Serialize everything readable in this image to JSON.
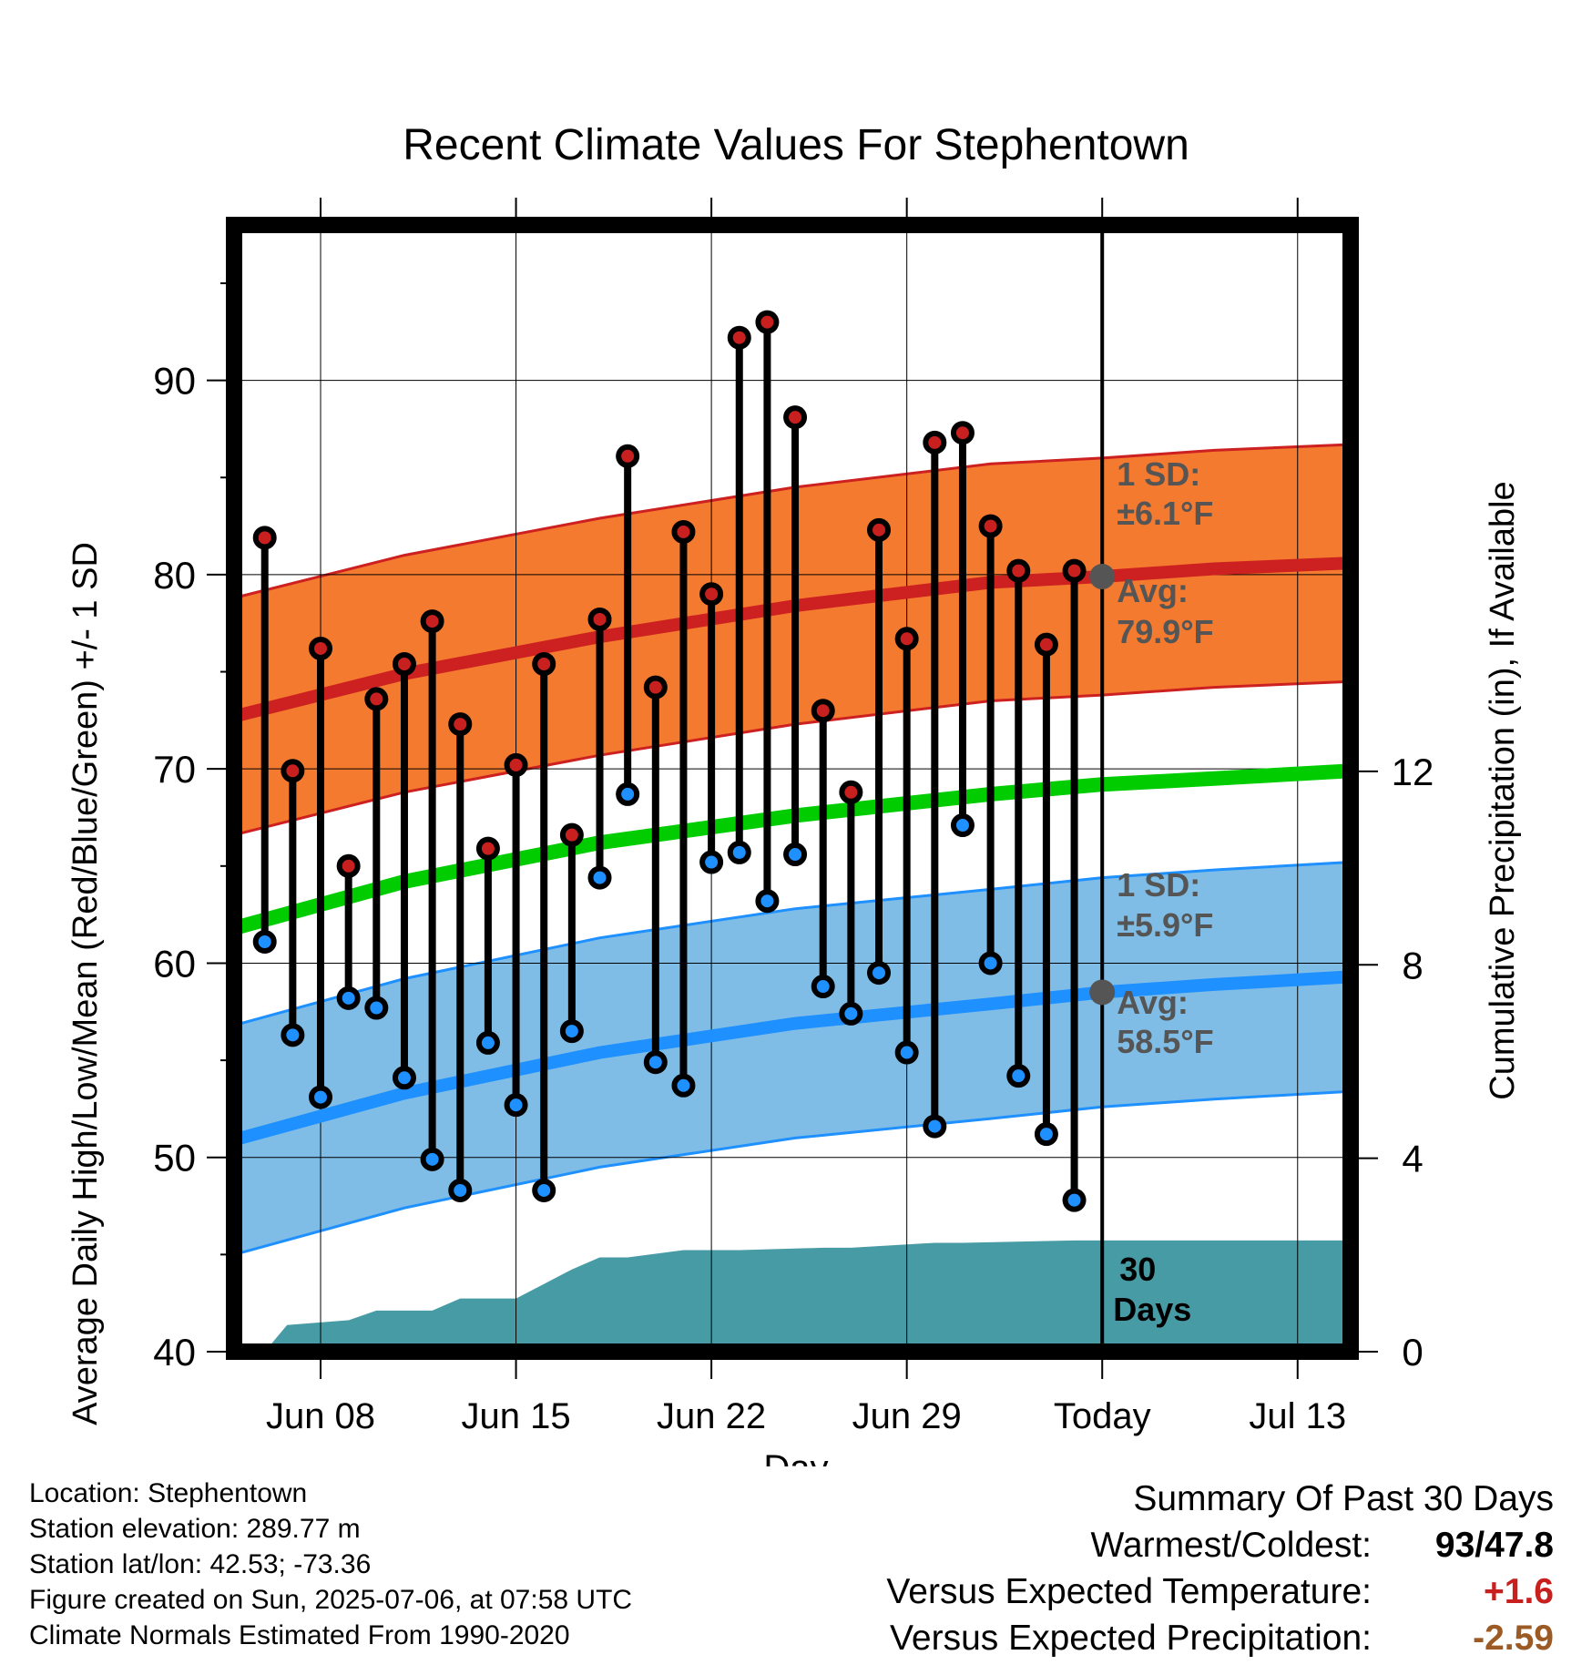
{
  "chart_data": {
    "type": "line",
    "title": "Recent Climate Values For Stephentown",
    "xlabel": "Day",
    "ylabel": "Average Daily High/Low/Mean (Red/Blue/Green) +/- 1 SD",
    "y2label": "Cumulative Precipitation (in), If Available",
    "ylim": [
      40,
      98
    ],
    "y2lim": [
      0,
      23.3
    ],
    "y_ticks": [
      40,
      50,
      60,
      70,
      80,
      90
    ],
    "y2_ticks": [
      0,
      4,
      8,
      12
    ],
    "x_ticks": [
      {
        "day": 8,
        "label": "Jun 08"
      },
      {
        "day": 15,
        "label": "Jun 15"
      },
      {
        "day": 22,
        "label": "Jun 22"
      },
      {
        "day": 29,
        "label": "Jun 29"
      },
      {
        "day": 36,
        "label": "Today"
      },
      {
        "day": 43,
        "label": "Jul 13"
      }
    ],
    "xlim": [
      4.9,
      44.9
    ],
    "grid": true,
    "series": [
      {
        "name": "Daily High",
        "color": "#c8201f",
        "days": [
          6,
          7,
          8,
          9,
          10,
          11,
          12,
          13,
          14,
          15,
          16,
          17,
          18,
          19,
          20,
          21,
          22,
          23,
          24,
          25,
          26,
          27,
          28,
          29,
          30,
          31,
          32,
          33,
          34,
          35
        ],
        "values": [
          81.9,
          69.9,
          76.2,
          65.0,
          73.6,
          75.4,
          77.6,
          72.3,
          65.9,
          70.2,
          75.4,
          66.6,
          77.7,
          86.1,
          74.2,
          82.2,
          79.0,
          92.2,
          93.0,
          88.1,
          73.0,
          68.8,
          82.3,
          76.7,
          86.8,
          87.3,
          82.5,
          80.2,
          76.4,
          80.2
        ]
      },
      {
        "name": "Daily Low",
        "color": "#1e90ff",
        "days": [
          6,
          7,
          8,
          9,
          10,
          11,
          12,
          13,
          14,
          15,
          16,
          17,
          18,
          19,
          20,
          21,
          22,
          23,
          24,
          25,
          26,
          27,
          28,
          29,
          30,
          31,
          32,
          33,
          34,
          35
        ],
        "values": [
          61.1,
          56.3,
          53.1,
          58.2,
          57.7,
          54.1,
          49.9,
          48.3,
          55.9,
          52.7,
          48.3,
          56.5,
          64.4,
          68.7,
          54.9,
          53.7,
          65.2,
          65.7,
          63.2,
          65.6,
          58.8,
          57.4,
          59.5,
          55.4,
          51.6,
          67.1,
          60.0,
          54.2,
          51.2,
          47.8
        ]
      }
    ],
    "normals": {
      "days": [
        4.9,
        11,
        18,
        25,
        32,
        36,
        40,
        44.9
      ],
      "high_avg": [
        72.7,
        74.9,
        76.8,
        78.4,
        79.6,
        79.9,
        80.3,
        80.6
      ],
      "high_sd": 6.1,
      "mean_avg": [
        61.8,
        64.2,
        66.2,
        67.6,
        68.7,
        69.2,
        69.5,
        69.9
      ],
      "low_avg": [
        50.9,
        53.3,
        55.4,
        56.9,
        57.9,
        58.5,
        58.9,
        59.3
      ],
      "low_sd": 5.9
    },
    "precipitation": {
      "days": [
        6,
        6.8,
        9,
        10,
        12,
        13,
        14,
        15,
        16,
        17,
        18,
        19,
        21,
        22,
        23,
        26,
        27,
        30,
        31,
        35,
        36,
        44.9
      ],
      "cumulative_in": [
        0.0,
        0.55,
        0.65,
        0.85,
        0.85,
        1.1,
        1.1,
        1.1,
        1.4,
        1.7,
        1.95,
        1.95,
        2.1,
        2.1,
        2.1,
        2.15,
        2.15,
        2.25,
        2.25,
        2.3,
        2.3,
        2.3
      ]
    },
    "annotations": {
      "high_sd_label": "1 SD:",
      "high_sd_value": "±6.1°F",
      "high_avg_label": "Avg:",
      "high_avg_value": "79.9°F",
      "low_sd_label": "1 SD:",
      "low_sd_value": "±5.9°F",
      "low_avg_label": "Avg:",
      "low_avg_value": "58.5°F",
      "period_label_1": "30",
      "period_label_2": "Days"
    },
    "colors": {
      "high_band": "#f47a2f",
      "high_line": "#cd2020",
      "mean_line": "#00cc00",
      "low_band": "#7fbde6",
      "low_line": "#1e90ff",
      "precip": "#479ba5",
      "annotation_text": "#555555"
    }
  },
  "footer": {
    "location": "Location: Stephentown",
    "elevation": "Station elevation: 289.77 m",
    "latlon": "Station lat/lon: 42.53; -73.36",
    "created": "Figure created on Sun, 2025-07-06, at 07:58 UTC",
    "normals": "Climate Normals Estimated From 1990-2020"
  },
  "summary": {
    "title": "Summary Of Past 30 Days",
    "warmest_label": "Warmest/Coldest:",
    "warmest_value": "93/47.8",
    "temp_label": "Versus Expected Temperature:",
    "temp_value": "+1.6",
    "temp_color": "#c8201f",
    "precip_label": "Versus Expected Precipitation:",
    "precip_value": "-2.59",
    "precip_color": "#9c5a24"
  }
}
